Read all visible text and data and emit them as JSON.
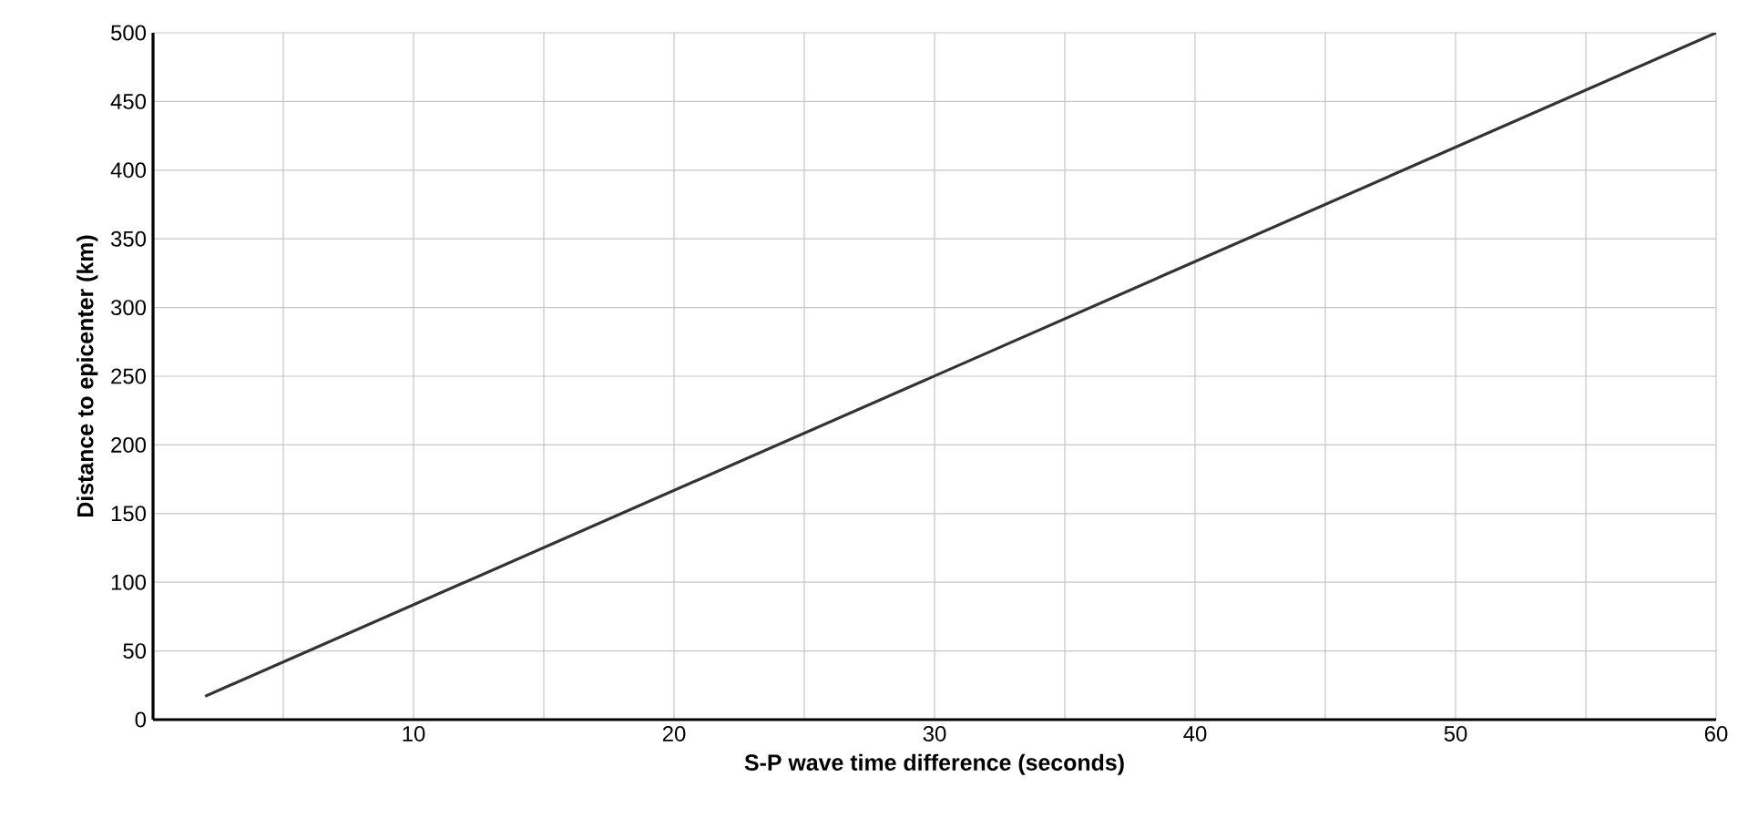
{
  "chart_data": {
    "type": "line",
    "xlabel": "S-P wave time difference (seconds)",
    "ylabel": "Distance to epicenter (km)",
    "x": [
      2,
      60
    ],
    "series": [
      {
        "color": "#333333",
        "values": [
          17,
          500
        ]
      }
    ],
    "xlim": [
      0,
      60
    ],
    "ylim": [
      0,
      500
    ],
    "xticks": [
      {
        "value": 5,
        "label": null
      },
      10,
      {
        "value": 15,
        "label": null
      },
      20,
      {
        "value": 25,
        "label": null
      },
      30,
      {
        "value": 35,
        "label": null
      },
      40,
      {
        "value": 45,
        "label": null
      },
      50,
      {
        "value": 55,
        "label": null
      },
      60
    ],
    "yticks": [
      0,
      50,
      100,
      150,
      200,
      250,
      300,
      350,
      400,
      450,
      500
    ],
    "grid": true,
    "marker": "none",
    "line_style": "solid"
  }
}
